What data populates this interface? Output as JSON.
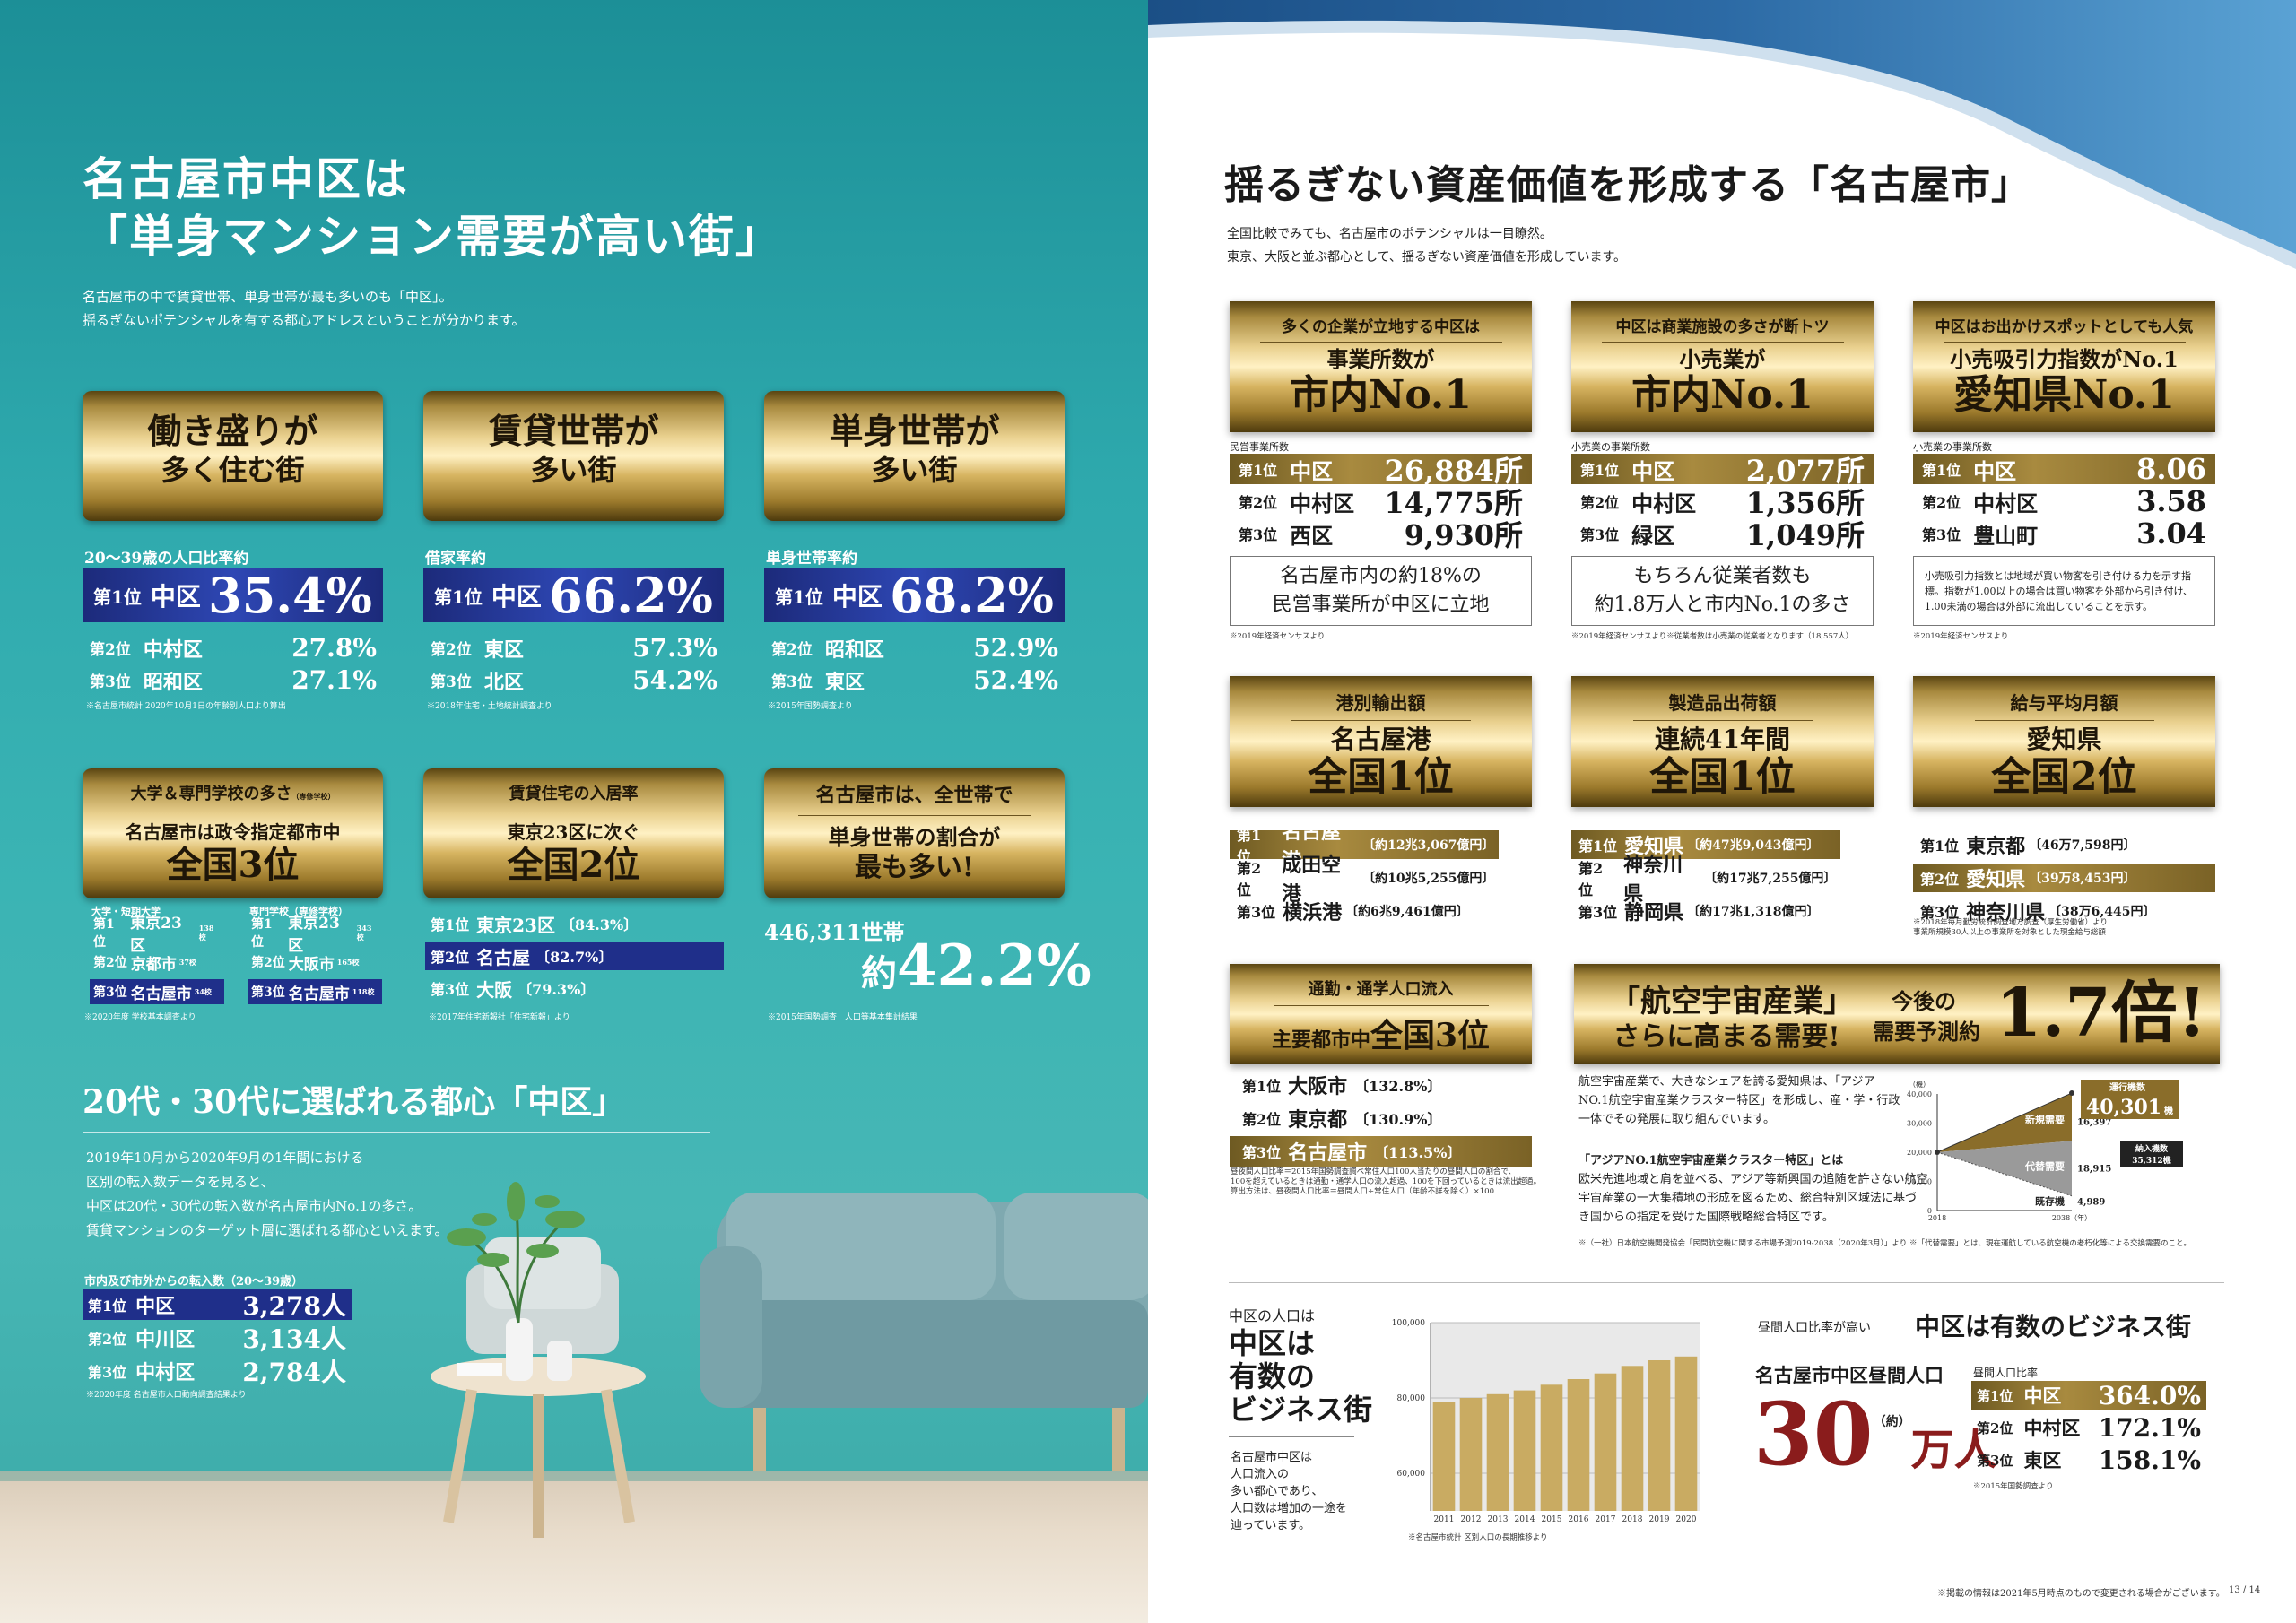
{
  "left": {
    "title": [
      "名古屋市中区は",
      "「単身マンション需要が高い街」"
    ],
    "lead": [
      "名古屋市の中で賃貸世帯、単身世帯が最も多いのも「中区」。",
      "揺るぎないポテンシャルを有する都心アドレスということが分かります。"
    ],
    "cards": [
      {
        "banner": [
          "働き盛りが",
          "多く住む街"
        ],
        "label": "20〜39歳の人口比率約",
        "r1": {
          "pos": "第1位",
          "name": "中区",
          "val": "35.4%"
        },
        "r2": {
          "pos": "第2位",
          "name": "中村区",
          "val": "27.8%"
        },
        "r3": {
          "pos": "第3位",
          "name": "昭和区",
          "val": "27.1%"
        },
        "note": "※名古屋市統計 2020年10月1日の年齢別人口より算出"
      },
      {
        "banner": [
          "賃貸世帯が",
          "多い街"
        ],
        "label": "借家率約",
        "r1": {
          "pos": "第1位",
          "name": "中区",
          "val": "66.2%"
        },
        "r2": {
          "pos": "第2位",
          "name": "東区",
          "val": "57.3%"
        },
        "r3": {
          "pos": "第3位",
          "name": "北区",
          "val": "54.2%"
        },
        "note": "※2018年住宅・土地統計調査より"
      },
      {
        "banner": [
          "単身世帯が",
          "多い街"
        ],
        "label": "単身世帯率約",
        "r1": {
          "pos": "第1位",
          "name": "中区",
          "val": "68.2%"
        },
        "r2": {
          "pos": "第2位",
          "name": "昭和区",
          "val": "52.9%"
        },
        "r3": {
          "pos": "第3位",
          "name": "東区",
          "val": "52.4%"
        },
        "note": "※2015年国勢調査より"
      }
    ],
    "school": {
      "top": "大学＆専門学校の多さ",
      "top_small": "（専修学校）",
      "main1": "名古屋市は政令指定都市中",
      "main2": "全国3位",
      "col1_head": "大学・短期大学",
      "col2_head": "専門学校（専修学校）",
      "c1": [
        {
          "pos": "第1位",
          "name": "東京23区",
          "n": "138校"
        },
        {
          "pos": "第2位",
          "name": "京都市",
          "n": "37校"
        },
        {
          "pos": "第3位",
          "name": "名古屋市",
          "n": "34校"
        }
      ],
      "c2": [
        {
          "pos": "第1位",
          "name": "東京23区",
          "n": "343校"
        },
        {
          "pos": "第2位",
          "name": "大阪市",
          "n": "165校"
        },
        {
          "pos": "第3位",
          "name": "名古屋市",
          "n": "118校"
        }
      ],
      "note": "※2020年度 学校基本調査より"
    },
    "rent": {
      "top": "賃貸住宅の入居率",
      "main1": "東京23区に次ぐ",
      "main2": "全国2位",
      "rows": [
        {
          "pos": "第1位",
          "name": "東京23区",
          "val": "〔84.3%〕"
        },
        {
          "pos": "第2位",
          "name": "名古屋",
          "val": "〔82.7%〕"
        },
        {
          "pos": "第3位",
          "name": "大阪",
          "val": "〔79.3%〕"
        }
      ],
      "note": "※2017年住宅新報社「住宅新報」より"
    },
    "single": {
      "b1": "名古屋市は、全世帯で",
      "b2": "単身世帯の割合が",
      "b3": "最も多い!",
      "count": "446,311世帯",
      "pct_prefix": "約",
      "pct": "42.2%",
      "note": "※2015年国勢調査　人口等基本集計結果"
    },
    "section2": {
      "title": "20代・30代に選ばれる都心「中区」",
      "text": [
        "2019年10月から2020年9月の1年間における",
        "区別の転入数データを見ると、",
        "中区は20代・30代の転入数が名古屋市内No.1の多さ。",
        "賃貸マンションのターゲット層に選ばれる都心といえます。"
      ],
      "label": "市内及び市外からの転入数（20〜39歳）",
      "rows": [
        {
          "pos": "第1位",
          "name": "中区",
          "val": "3,278人"
        },
        {
          "pos": "第2位",
          "name": "中川区",
          "val": "3,134人"
        },
        {
          "pos": "第3位",
          "name": "中村区",
          "val": "2,784人"
        }
      ],
      "note": "※2020年度 名古屋市人口動向調査結果より"
    }
  },
  "right": {
    "title": "揺るぎない資産価値を形成する「名古屋市」",
    "lead": [
      "全国比較でみても、名古屋市のポテンシャルは一目瞭然。",
      "東京、大阪と並ぶ都心として、揺るぎない資産価値を形成しています。"
    ],
    "top_cards": [
      {
        "sub": "多くの企業が立地する中区は",
        "m1": "事業所数が",
        "m2": "市内No.1",
        "label": "民営事業所数",
        "rows": [
          {
            "pos": "第1位",
            "name": "中区",
            "val": "26,884所"
          },
          {
            "pos": "第2位",
            "name": "中村区",
            "val": "14,775所"
          },
          {
            "pos": "第3位",
            "name": "西区",
            "val": "9,930所"
          }
        ],
        "box": [
          "名古屋市内の約18%の",
          "民営事業所が中区に立地"
        ],
        "note": "※2019年経済センサスより"
      },
      {
        "sub": "中区は商業施設の多さが断トツ",
        "m1": "小売業が",
        "m2": "市内No.1",
        "label": "小売業の事業所数",
        "rows": [
          {
            "pos": "第1位",
            "name": "中区",
            "val": "2,077所"
          },
          {
            "pos": "第2位",
            "name": "中村区",
            "val": "1,356所"
          },
          {
            "pos": "第3位",
            "name": "緑区",
            "val": "1,049所"
          }
        ],
        "box": [
          "もちろん従業者数も",
          "約1.8万人と市内No.1の多さ"
        ],
        "note": "※2019年経済センサスより※従業者数は小売業の従業者となります（18,557人）"
      },
      {
        "sub": "中区はお出かけスポットとしても人気",
        "m1": "小売吸引力指数がNo.1",
        "m2": "愛知県No.1",
        "label": "小売業の事業所数",
        "rows": [
          {
            "pos": "第1位",
            "name": "中区",
            "val": "8.06"
          },
          {
            "pos": "第2位",
            "name": "中村区",
            "val": "3.58"
          },
          {
            "pos": "第3位",
            "name": "豊山町",
            "val": "3.04"
          }
        ],
        "box": [
          "小売吸引力指数とは地域が買い物客を引き付ける力を示す指標。指数が1.00以上の場合は買い物客を外部から引き付け、1.00未満の場合は外部に流出していることを示す。"
        ],
        "note": "※2019年経済センサスより"
      }
    ],
    "mid_cards": [
      {
        "sub": "港別輸出額",
        "m1": "名古屋港",
        "m2": "全国1位",
        "rows": [
          {
            "pos": "第1位",
            "name": "名古屋港",
            "val": "〔約12兆3,067億円〕"
          },
          {
            "pos": "第2位",
            "name": "成田空港",
            "val": "〔約10兆5,255億円〕"
          },
          {
            "pos": "第3位",
            "name": "横浜港",
            "val": "〔約6兆9,461億円〕"
          }
        ]
      },
      {
        "sub": "製造品出荷額",
        "m1": "連続41年間",
        "m2": "全国1位",
        "rows": [
          {
            "pos": "第1位",
            "name": "愛知県",
            "val": "〔約47兆9,043億円〕"
          },
          {
            "pos": "第2位",
            "name": "神奈川県",
            "val": "〔約17兆7,255億円〕"
          },
          {
            "pos": "第3位",
            "name": "静岡県",
            "val": "〔約17兆1,318億円〕"
          }
        ]
      },
      {
        "sub": "給与平均月額",
        "m1": "愛知県",
        "m2": "全国2位",
        "rows": [
          {
            "pos": "第1位",
            "name": "東京都",
            "val": "〔46万7,598円〕"
          },
          {
            "pos": "第2位",
            "name": "愛知県",
            "val": "〔39万8,453円〕"
          },
          {
            "pos": "第3位",
            "name": "神奈川県",
            "val": "〔38万6,445円〕"
          }
        ],
        "note": [
          "※2018年毎月勤労統計調査地方調査（厚生労働省）より",
          "事業所規模30人以上の事業所を対象とした現金給与総額"
        ]
      }
    ],
    "commute": {
      "sub": "通勤・通学人口流入",
      "m1": "主要都市中",
      "m2": "全国3位",
      "rows": [
        {
          "pos": "第1位",
          "name": "大阪市",
          "val": "〔132.8%〕"
        },
        {
          "pos": "第2位",
          "name": "東京都",
          "val": "〔130.9%〕"
        },
        {
          "pos": "第3位",
          "name": "名古屋市",
          "val": "〔113.5%〕"
        }
      ],
      "note": [
        "昼夜間人口比率＝2015年国勢調査調べ常住人口100人当たりの昼間人口の割合で、",
        "100を超えているときは通勤・通学人口の流入超過、100を下回っているときは流出超過。",
        "算出方法は、昼夜間人口比率＝昼間人口÷常住人口（年齢不詳を除く）×100"
      ]
    },
    "aero": {
      "b1": "「航空宇宙産業」",
      "b2": "さらに高まる需要!",
      "b3": "今後の",
      "b4": "需要予測約",
      "b5": "1.7倍!",
      "text1": [
        "航空宇宙産業で、大きなシェアを誇る愛知県は、「アジア",
        "NO.1航空宇宙産業クラスター特区」を形成し、産・学・行政",
        "一体でその発展に取り組んでいます。"
      ],
      "text2": [
        "「アジアNO.1航空宇宙産業クラスター特区」とは",
        "欧米先進地域と肩を並べる、アジア等新興国の追随を許さない航空",
        "宇宙産業の一大集積地の形成を図るため、総合特別区域法に基づ",
        "き国からの指定を受けた国際戦略総合特区です。"
      ],
      "chart_unit": "（機）",
      "yticks": [
        "40,000",
        "30,000",
        "20,000",
        "10,000",
        "0"
      ],
      "x1": "2018",
      "x2": "2038（年）",
      "box1": "運行機数",
      "box1v": "40,301",
      "box1u": "機",
      "new": "新規需要",
      "new_v": "16,397",
      "repl": "代替需要",
      "repl_v": "18,915",
      "exist": "既存機",
      "exist_v": "4,989",
      "total": "納入機数",
      "total_v": "35,312機",
      "note": "※（一社）日本航空機開発協会「民間航空機に関する市場予測2019-2038（2020年3月）」より ※「代替需要」とは、現在運航している航空機の老朽化等による交換需要のこと。"
    },
    "population": {
      "label": "中区の人口は",
      "big": [
        "中区は",
        "有数の",
        "ビジネス街"
      ],
      "small": [
        "名古屋市中区は",
        "人口流入の",
        "多い都心であり、",
        "人口数は増加の一途を",
        "辿っています。"
      ],
      "note": "※名古屋市統計 区別人口の長期推移より"
    },
    "daytime": {
      "pre": "昼間人口比率が高い",
      "title": "中区は有数のビジネス街",
      "label": "名古屋市中区昼間人口",
      "big": "30",
      "big_small": "（約）",
      "big_unit": "万人",
      "rank_label": "昼間人口比率",
      "rows": [
        {
          "pos": "第1位",
          "name": "中区",
          "val": "364.0%"
        },
        {
          "pos": "第2位",
          "name": "中村区",
          "val": "172.1%"
        },
        {
          "pos": "第3位",
          "name": "東区",
          "val": "158.1%"
        }
      ],
      "note": "※2015年国勢調査より"
    },
    "footer": "※掲載の情報は2021年5月時点のもので変更される場合がございます。",
    "page": "13 / 14"
  },
  "chart_data": [
    {
      "type": "bar",
      "title": "",
      "categories": [
        "2011",
        "2012",
        "2013",
        "2014",
        "2015",
        "2016",
        "2017",
        "2018",
        "2019",
        "2020"
      ],
      "values": [
        79000,
        80000,
        81000,
        82000,
        83500,
        85000,
        86500,
        88500,
        90000,
        91000
      ],
      "yticks": [
        "100,000",
        "80,000",
        "60,000"
      ],
      "ylim": [
        50000,
        100000
      ],
      "xlabel": "",
      "ylabel": "",
      "grid": true,
      "colors": [
        "#c9ab62"
      ]
    },
    {
      "type": "area",
      "title": "",
      "x": [
        "2018",
        "2038"
      ],
      "series": [
        {
          "name": "既存機",
          "values": [
            20000,
            4989
          ]
        },
        {
          "name": "新規需要",
          "values": [
            0,
            16397
          ]
        },
        {
          "name": "代替需要",
          "values": [
            0,
            18915
          ]
        }
      ],
      "ylim": [
        0,
        40000
      ],
      "colors": [
        "#ffffff",
        "#8a6d2a",
        "#9a9a9a"
      ]
    }
  ]
}
